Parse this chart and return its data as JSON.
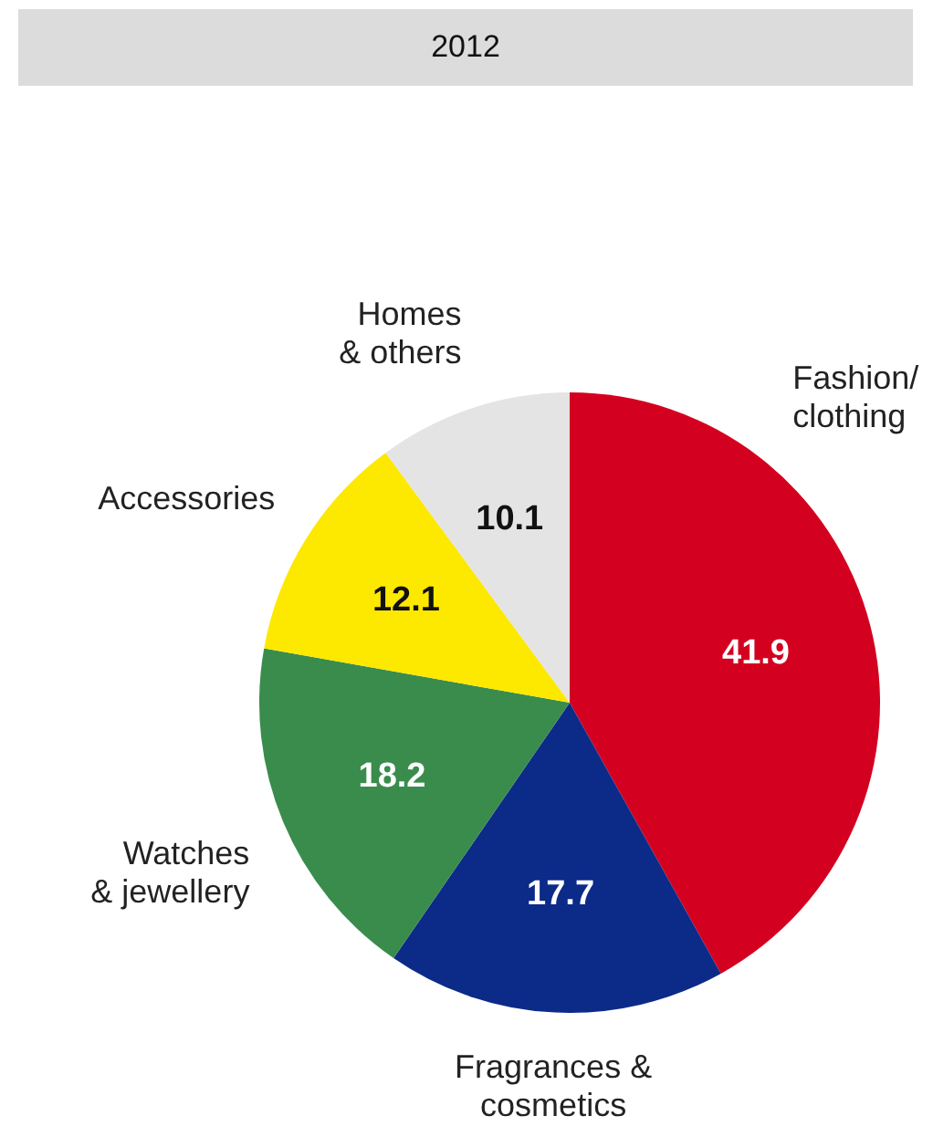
{
  "chart_data": {
    "type": "pie",
    "title": "2012",
    "categories": [
      "Fashion/\nclothing",
      "Fragrances &\ncosmetics",
      "Watches\n& jewellery",
      "Accessories",
      "Homes\n& others"
    ],
    "values": [
      41.9,
      17.7,
      18.2,
      12.1,
      10.1
    ],
    "colors": [
      "#d40020",
      "#0c2a88",
      "#3a8c4c",
      "#fde800",
      "#e4e4e4"
    ],
    "data_labels": true,
    "legend": false
  }
}
